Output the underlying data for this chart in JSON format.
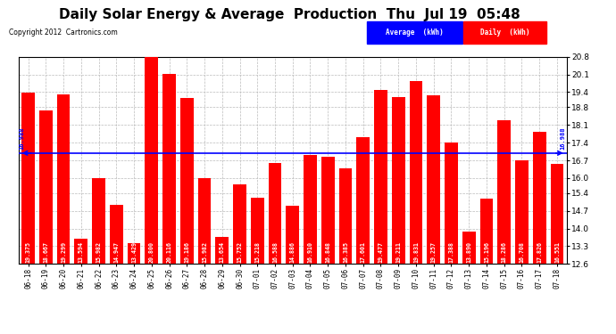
{
  "title": "Daily Solar Energy & Average  Production  Thu  Jul 19  05:48",
  "copyright": "Copyright 2012  Cartronics.com",
  "categories": [
    "06-18",
    "06-19",
    "06-20",
    "06-21",
    "06-22",
    "06-23",
    "06-24",
    "06-25",
    "06-26",
    "06-27",
    "06-28",
    "06-29",
    "06-30",
    "07-01",
    "07-02",
    "07-03",
    "07-04",
    "07-05",
    "07-06",
    "07-07",
    "07-08",
    "07-09",
    "07-10",
    "07-11",
    "07-12",
    "07-13",
    "07-14",
    "07-15",
    "07-16",
    "07-17",
    "07-18"
  ],
  "values": [
    19.375,
    18.667,
    19.299,
    13.594,
    15.982,
    14.947,
    13.429,
    20.8,
    20.116,
    19.186,
    15.982,
    13.654,
    15.752,
    15.218,
    16.588,
    14.886,
    16.91,
    16.848,
    16.385,
    17.601,
    19.477,
    19.211,
    19.831,
    19.257,
    17.388,
    13.89,
    15.196,
    18.286,
    16.708,
    17.826,
    16.551
  ],
  "average": 16.988,
  "bar_color": "#ff0000",
  "avg_line_color": "#0000ff",
  "background_color": "#ffffff",
  "plot_bg_color": "#ffffff",
  "grid_color": "#bbbbbb",
  "ylim": [
    12.6,
    20.8
  ],
  "yticks": [
    12.6,
    13.3,
    14.0,
    14.7,
    15.4,
    16.0,
    16.7,
    17.4,
    18.1,
    18.8,
    19.4,
    20.1,
    20.8
  ],
  "title_fontsize": 11,
  "bar_label_fontsize": 5.0,
  "avg_label": "16.988",
  "legend_avg_text": "Average  (kWh)",
  "legend_daily_text": "Daily  (kWh)"
}
